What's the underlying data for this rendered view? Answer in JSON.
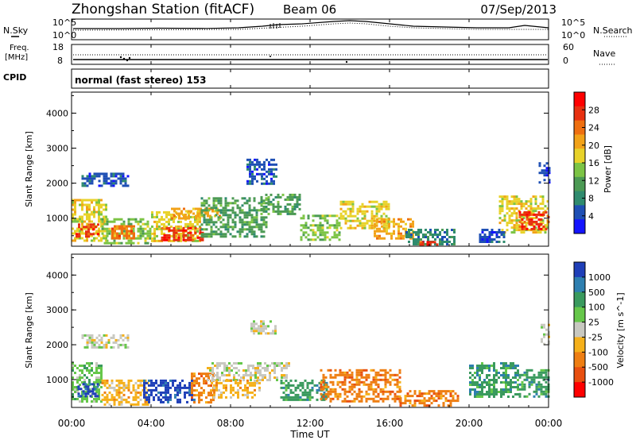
{
  "header": {
    "station": "Zhongshan Station (fitACF)",
    "beam": "Beam 06",
    "date": "07/Sep/2013"
  },
  "noise_panel": {
    "left_label": "N.Sky",
    "right_label": "N.Search",
    "left_ticks": [
      "10^5",
      "10^0"
    ],
    "right_ticks": [
      "10^5",
      "10^0"
    ]
  },
  "freq_panel": {
    "left_label_1": "Freq.",
    "left_label_2": "[MHz]",
    "right_label": "Nave",
    "left_ticks": [
      "18",
      "8"
    ],
    "right_ticks": [
      "60",
      "0"
    ]
  },
  "cpid_panel": {
    "label": "CPID",
    "text": "normal (fast stereo) 153"
  },
  "colors": {
    "frame": "#000000",
    "power_scale": [
      "#1414ff",
      "#1e4fb4",
      "#2f8b6e",
      "#4c9a54",
      "#7cc445",
      "#e8d22a",
      "#f2a218",
      "#ef6f10",
      "#e83010",
      "#ff0000"
    ],
    "velocity_scale": [
      "#1f3fb8",
      "#2e7fb0",
      "#3a9a5e",
      "#66c74a",
      "#c8c8c0",
      "#f5b01a",
      "#ee7e12",
      "#e84f10",
      "#ff0000"
    ]
  },
  "chart_data": [
    {
      "type": "heatmap",
      "name": "power",
      "xlabel": "",
      "ylabel": "Slant Range [km]",
      "ylim": [
        200,
        4600
      ],
      "yticks": [
        "1000",
        "2000",
        "3000",
        "4000"
      ],
      "colorbar_label": "Power [dB]",
      "colorbar_ticks": [
        "4",
        "8",
        "12",
        "16",
        "20",
        "24",
        "28"
      ],
      "colorbar_range": [
        0,
        32
      ],
      "regions": [
        {
          "t0": 0.0,
          "t1": 1.8,
          "r0": 350,
          "r1": 1550,
          "v": 18
        },
        {
          "t0": 0.2,
          "t1": 1.4,
          "r0": 450,
          "r1": 850,
          "v": 26
        },
        {
          "t0": 0.5,
          "t1": 2.8,
          "r0": 1900,
          "r1": 2300,
          "v": 6
        },
        {
          "t0": 1.5,
          "t1": 4.0,
          "r0": 300,
          "r1": 1000,
          "v": 15
        },
        {
          "t0": 2.0,
          "t1": 3.2,
          "r0": 400,
          "r1": 800,
          "v": 25
        },
        {
          "t0": 4.0,
          "t1": 6.5,
          "r0": 350,
          "r1": 1200,
          "v": 16
        },
        {
          "t0": 4.5,
          "t1": 6.6,
          "r0": 350,
          "r1": 750,
          "v": 28
        },
        {
          "t0": 5.0,
          "t1": 7.5,
          "r0": 1000,
          "r1": 1300,
          "v": 20
        },
        {
          "t0": 6.5,
          "t1": 9.8,
          "r0": 500,
          "r1": 1600,
          "v": 12
        },
        {
          "t0": 8.8,
          "t1": 10.3,
          "r0": 2000,
          "r1": 2700,
          "v": 5
        },
        {
          "t0": 9.5,
          "t1": 11.5,
          "r0": 1100,
          "r1": 1700,
          "v": 12
        },
        {
          "t0": 11.5,
          "t1": 13.5,
          "r0": 400,
          "r1": 1100,
          "v": 14
        },
        {
          "t0": 13.5,
          "t1": 16.0,
          "r0": 700,
          "r1": 1500,
          "v": 18
        },
        {
          "t0": 15.2,
          "t1": 17.2,
          "r0": 400,
          "r1": 1000,
          "v": 22
        },
        {
          "t0": 16.8,
          "t1": 19.3,
          "r0": 250,
          "r1": 700,
          "v": 8
        },
        {
          "t0": 17.5,
          "t1": 18.5,
          "r0": 230,
          "r1": 350,
          "v": 26
        },
        {
          "t0": 21.5,
          "t1": 24.0,
          "r0": 600,
          "r1": 1650,
          "v": 18
        },
        {
          "t0": 22.5,
          "t1": 24.0,
          "r0": 700,
          "r1": 1200,
          "v": 28
        },
        {
          "t0": 20.5,
          "t1": 21.8,
          "r0": 300,
          "r1": 700,
          "v": 6
        },
        {
          "t0": 23.5,
          "t1": 24.0,
          "r0": 2000,
          "r1": 2600,
          "v": 5
        }
      ]
    },
    {
      "type": "heatmap",
      "name": "velocity",
      "xlabel": "Time UT",
      "ylabel": "Slant Range [km]",
      "ylim": [
        200,
        4600
      ],
      "yticks": [
        "1000",
        "2000",
        "3000",
        "4000"
      ],
      "xticks": [
        "00:00",
        "04:00",
        "08:00",
        "12:00",
        "16:00",
        "20:00",
        "00:00"
      ],
      "xlim_hours": [
        0,
        24
      ],
      "colorbar_label": "Velocity [m s^-1]",
      "colorbar_ticks": [
        "1000",
        "500",
        "100",
        "25",
        "-25",
        "-100",
        "-500",
        "-1000"
      ],
      "regions": [
        {
          "t0": 0.0,
          "t1": 1.5,
          "r0": 400,
          "r1": 1500,
          "v": 3
        },
        {
          "t0": 0.3,
          "t1": 1.3,
          "r0": 500,
          "r1": 900,
          "v": 0
        },
        {
          "t0": 0.5,
          "t1": 2.8,
          "r0": 1900,
          "r1": 2300,
          "v": 4
        },
        {
          "t0": 1.5,
          "t1": 3.8,
          "r0": 300,
          "r1": 1000,
          "v": 5
        },
        {
          "t0": 3.6,
          "t1": 6.2,
          "r0": 350,
          "r1": 1000,
          "v": 0
        },
        {
          "t0": 6.0,
          "t1": 7.2,
          "r0": 350,
          "r1": 1200,
          "v": 6
        },
        {
          "t0": 6.8,
          "t1": 11.0,
          "r0": 1000,
          "r1": 1500,
          "v": 4
        },
        {
          "t0": 7.0,
          "t1": 9.5,
          "r0": 500,
          "r1": 1000,
          "v": 5
        },
        {
          "t0": 9.0,
          "t1": 10.3,
          "r0": 2300,
          "r1": 2700,
          "v": 4
        },
        {
          "t0": 10.5,
          "t1": 12.8,
          "r0": 400,
          "r1": 1000,
          "v": 2
        },
        {
          "t0": 12.5,
          "t1": 16.5,
          "r0": 400,
          "r1": 1300,
          "v": 6
        },
        {
          "t0": 16.5,
          "t1": 19.5,
          "r0": 250,
          "r1": 700,
          "v": 6
        },
        {
          "t0": 20.0,
          "t1": 22.5,
          "r0": 500,
          "r1": 1500,
          "v": 2
        },
        {
          "t0": 22.5,
          "t1": 24.0,
          "r0": 500,
          "r1": 1300,
          "v": 2
        },
        {
          "t0": 23.6,
          "t1": 24.0,
          "r0": 2000,
          "r1": 2600,
          "v": 4
        }
      ]
    }
  ]
}
